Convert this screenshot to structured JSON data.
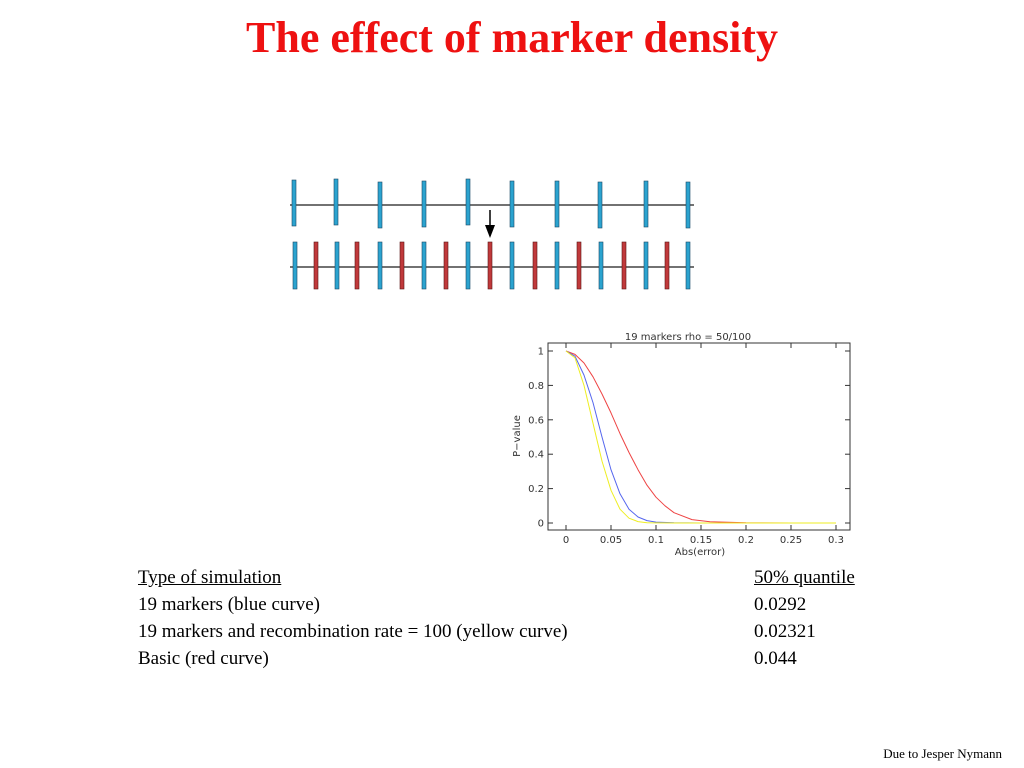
{
  "slide": {
    "title": "The effect of marker density",
    "credit": "Due to Jesper Nymann",
    "colors": {
      "title": "#ee1111",
      "marker_blue": "#2ba3cf",
      "marker_red": "#c0393b",
      "curve_red": "#ee4444",
      "curve_blue": "#5566ee",
      "curve_yellow": "#eeee22"
    }
  },
  "diagram": {
    "top_row_markers": [
      "blue",
      "blue",
      "blue",
      "blue",
      "blue",
      "blue",
      "blue",
      "blue",
      "blue",
      "blue"
    ],
    "bottom_row_markers": [
      "blue",
      "red",
      "blue",
      "red",
      "blue",
      "red",
      "blue",
      "red",
      "blue",
      "red",
      "blue",
      "red",
      "blue",
      "red",
      "blue",
      "red",
      "blue",
      "red",
      "blue"
    ],
    "indicator_icon": "down-arrow-icon"
  },
  "table": {
    "header": {
      "type": "Type of simulation",
      "value": "50% quantile"
    },
    "rows": [
      {
        "type": "19 markers (blue curve)",
        "value": "0.0292"
      },
      {
        "type": "19 markers and recombination rate = 100 (yellow curve)",
        "value": "0.02321"
      },
      {
        "type": "Basic  (red curve)",
        "value": "0.044"
      }
    ]
  },
  "chart_data": {
    "type": "line",
    "title": "19 markers rho = 50/100",
    "xlabel": "Abs(error)",
    "ylabel": "P−value",
    "xlim": [
      0,
      0.3
    ],
    "ylim": [
      0,
      1
    ],
    "x_ticks": [
      "0",
      "0.05",
      "0.1",
      "0.15",
      "0.2",
      "0.25",
      "0.3"
    ],
    "y_ticks": [
      "0",
      "0.2",
      "0.4",
      "0.6",
      "0.8",
      "1"
    ],
    "series": [
      {
        "color": "#ee4444",
        "x": [
          0,
          0.01,
          0.02,
          0.03,
          0.04,
          0.05,
          0.06,
          0.07,
          0.08,
          0.09,
          0.1,
          0.11,
          0.12,
          0.14,
          0.16,
          0.2,
          0.25,
          0.3
        ],
        "y": [
          1,
          0.98,
          0.93,
          0.85,
          0.75,
          0.64,
          0.52,
          0.41,
          0.31,
          0.22,
          0.15,
          0.1,
          0.06,
          0.02,
          0.007,
          0.001,
          0,
          0
        ]
      },
      {
        "color": "#5566ee",
        "x": [
          0,
          0.01,
          0.02,
          0.03,
          0.04,
          0.05,
          0.06,
          0.07,
          0.08,
          0.09,
          0.1,
          0.12,
          0.15,
          0.2,
          0.3
        ],
        "y": [
          1,
          0.97,
          0.86,
          0.7,
          0.5,
          0.31,
          0.17,
          0.08,
          0.035,
          0.014,
          0.005,
          0.001,
          0,
          0,
          0
        ]
      },
      {
        "color": "#eeee22",
        "x": [
          0,
          0.01,
          0.02,
          0.03,
          0.04,
          0.05,
          0.06,
          0.07,
          0.08,
          0.09,
          0.1,
          0.12,
          0.15,
          0.2,
          0.3
        ],
        "y": [
          1,
          0.96,
          0.8,
          0.58,
          0.36,
          0.19,
          0.08,
          0.028,
          0.008,
          0.002,
          0.0005,
          0,
          0,
          0,
          0
        ]
      }
    ],
    "grid": false,
    "legend": "none"
  }
}
